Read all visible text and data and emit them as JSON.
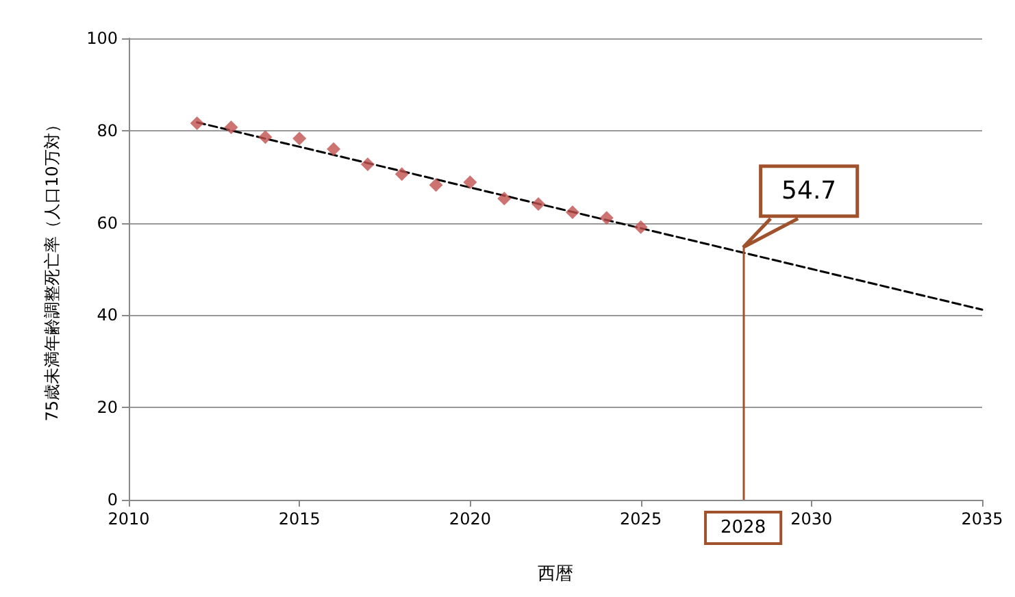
{
  "chart_data": {
    "type": "scatter",
    "xlabel": "西暦",
    "ylabel": "75歳未満年齢調整死亡率（人口10万対）",
    "x": [
      2012,
      2013,
      2014,
      2015,
      2016,
      2017,
      2018,
      2019,
      2020,
      2021,
      2022,
      2023,
      2024,
      2025
    ],
    "series": [
      {
        "color": "#c0504d",
        "values": [
          81.6,
          80.7,
          78.6,
          78.3,
          76.0,
          72.7,
          70.6,
          68.2,
          68.8,
          65.3,
          64.1,
          62.3,
          61.1,
          59.1
        ]
      },
      {
        "type": "line",
        "color": "#000000",
        "line_style": "dashed",
        "marker": "none",
        "x": [
          2012,
          2035
        ],
        "values": [
          81.8,
          41.2
        ]
      }
    ],
    "marker": "diamond",
    "xlim": [
      2010,
      2035
    ],
    "xticks": [
      2010,
      2015,
      2020,
      2025,
      2030,
      2035
    ],
    "ylim": [
      0,
      100
    ],
    "yticks": [
      0,
      20,
      40,
      60,
      80,
      100
    ],
    "grid": "y",
    "ref_lines": [
      {
        "axis": "x",
        "value": 2028,
        "label": "2028",
        "color": "#a0522d"
      }
    ],
    "annotations": [
      {
        "text": "54.7",
        "x": 2028,
        "y": 54.7
      }
    ]
  }
}
